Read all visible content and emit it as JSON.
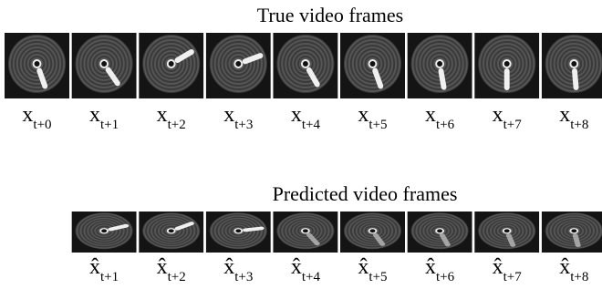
{
  "true_frames": {
    "title": "True video frames",
    "symbol": "x",
    "subscripts": [
      "t+0",
      "t+1",
      "t+2",
      "t+3",
      "t+4",
      "t+5",
      "t+6",
      "t+7",
      "t+8"
    ]
  },
  "predicted_frames": {
    "title": "Predicted video frames",
    "symbol": "x̂",
    "subscripts": [
      "t+1",
      "t+2",
      "t+3",
      "t+4",
      "t+5",
      "t+6",
      "t+7",
      "t+8"
    ]
  }
}
